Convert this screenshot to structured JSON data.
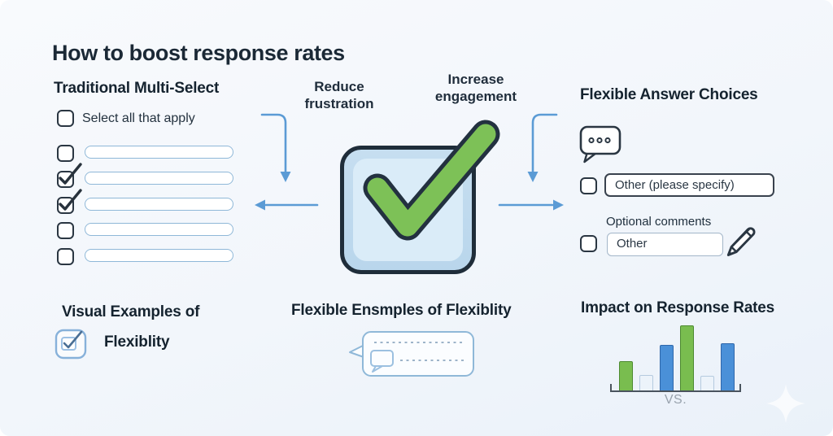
{
  "page": {
    "title": "How to boost response rates"
  },
  "left_panel": {
    "header": "Traditional Multi-Select",
    "select_all_label": "Select all that apply",
    "options": [
      {
        "checked": false
      },
      {
        "checked": true
      },
      {
        "checked": true
      },
      {
        "checked": false
      },
      {
        "checked": false
      }
    ]
  },
  "center": {
    "benefit_left": "Reduce frustration",
    "benefit_right": "Increase engagement"
  },
  "right_panel": {
    "header": "Flexible Answer Choices",
    "other_specify_value": "Other (please specify)",
    "optional_comments_label": "Optional comments",
    "other_value": "Other"
  },
  "bottom_left": {
    "header_line1": "Visual Examples of",
    "header_line2": "Flexiblity"
  },
  "bottom_center": {
    "header": "Flexible Ensmples of Flexiblity"
  },
  "bottom_right": {
    "header": "Impact on Response Rates",
    "vs_label": "VS."
  },
  "chart_data": {
    "type": "bar",
    "title": "Impact on Response Rates",
    "categories": [
      "bar-1",
      "bar-2",
      "bar-3",
      "bar-4",
      "bar-5",
      "bar-6"
    ],
    "values": [
      46,
      25,
      70,
      100,
      24,
      73
    ],
    "bar_colors": [
      "green",
      "neutral",
      "blue",
      "green",
      "neutral",
      "blue"
    ],
    "annotation": "VS.",
    "xlabel": "",
    "ylabel": "",
    "axes_visible": false,
    "legend": "none"
  },
  "icons": {
    "speech_bubble": "speech-bubble-icon",
    "pencil": "pencil-icon",
    "checkbox_check": "checkbox-check-icon",
    "check_mark": "check-mark-icon",
    "arrow": "arrow-icon",
    "sparkle": "sparkle-watermark-icon"
  },
  "colors": {
    "background": "#f3f7fb",
    "ink": "#1c2a38",
    "arrow_blue": "#5b9bd5",
    "field_border": "#8fb8d8",
    "checkbox_border": "#2a3642",
    "check_green": "#7dc157",
    "box_fill": "#c2dcef",
    "bar_green": "#79bd4f",
    "bar_blue": "#4a90d8",
    "bar_neutral": "#ecf3fa"
  }
}
